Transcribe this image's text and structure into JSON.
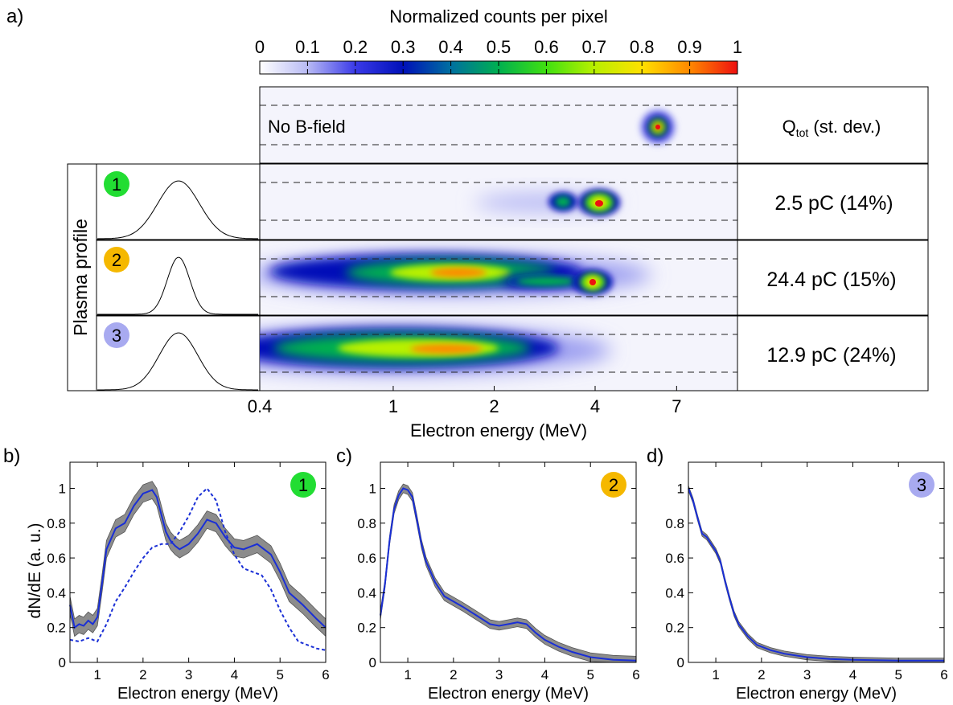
{
  "colorbar": {
    "title": "Normalized counts per pixel",
    "ticks": [
      "0",
      "0.1",
      "0.2",
      "0.3",
      "0.4",
      "0.5",
      "0.6",
      "0.7",
      "0.8",
      "0.9",
      "1"
    ],
    "range": [
      0,
      1
    ]
  },
  "panel_a": {
    "label": "a)",
    "plasma_profile_label": "Plasma profile",
    "no_field_label": "No B-field",
    "charge_header": "Q",
    "charge_header_sub": "tot",
    "charge_header_rest": " (st. dev.)",
    "xlabel": "Electron energy (MeV)",
    "xticks": [
      "0.4",
      "1",
      "2",
      "4",
      "7"
    ],
    "rows": [
      {
        "id": "1",
        "badge_color": "#22dd33",
        "charge": "2.5 pC (14%)"
      },
      {
        "id": "2",
        "badge_color": "#f5b800",
        "charge": "24.4 pC (15%)"
      },
      {
        "id": "3",
        "badge_color": "#a8aaf0",
        "charge": "12.9 pC (24%)"
      }
    ]
  },
  "chart_data": [
    {
      "type": "line",
      "panel": "b)",
      "badge": "1",
      "badge_color": "#22dd33",
      "xlabel": "Electron energy (MeV)",
      "ylabel": "dN/dE (a. u.)",
      "xlim": [
        0.4,
        6
      ],
      "ylim": [
        0,
        1.15
      ],
      "xticks": [
        1,
        2,
        3,
        4,
        5,
        6
      ],
      "yticks": [
        0,
        0.2,
        0.4,
        0.6,
        0.8,
        1
      ],
      "band_halfwidth": 0.05,
      "series": [
        {
          "style": "solid",
          "color": "#1a2fd6",
          "x": [
            0.4,
            0.5,
            0.6,
            0.7,
            0.8,
            0.9,
            1.0,
            1.1,
            1.2,
            1.4,
            1.6,
            1.8,
            2.0,
            2.2,
            2.3,
            2.4,
            2.5,
            2.6,
            2.7,
            2.8,
            3.0,
            3.2,
            3.4,
            3.6,
            3.8,
            4.0,
            4.2,
            4.5,
            4.8,
            5.0,
            5.2,
            5.5,
            5.8,
            6.0
          ],
          "y": [
            0.33,
            0.2,
            0.22,
            0.21,
            0.24,
            0.22,
            0.26,
            0.45,
            0.65,
            0.77,
            0.8,
            0.9,
            0.97,
            0.99,
            0.95,
            0.85,
            0.75,
            0.7,
            0.67,
            0.65,
            0.68,
            0.74,
            0.82,
            0.8,
            0.72,
            0.66,
            0.65,
            0.68,
            0.62,
            0.52,
            0.4,
            0.33,
            0.25,
            0.2
          ]
        },
        {
          "style": "dashed",
          "color": "#1a2fd6",
          "x": [
            0.4,
            0.6,
            0.8,
            1.0,
            1.2,
            1.4,
            1.6,
            1.8,
            2.0,
            2.2,
            2.4,
            2.6,
            2.8,
            3.0,
            3.2,
            3.4,
            3.6,
            3.8,
            4.0,
            4.2,
            4.4,
            4.6,
            4.8,
            5.0,
            5.2,
            5.4,
            5.6,
            5.8,
            6.0
          ],
          "y": [
            0.13,
            0.12,
            0.14,
            0.12,
            0.22,
            0.35,
            0.43,
            0.52,
            0.6,
            0.66,
            0.68,
            0.68,
            0.75,
            0.84,
            0.95,
            1.0,
            0.93,
            0.75,
            0.62,
            0.54,
            0.52,
            0.5,
            0.42,
            0.3,
            0.2,
            0.12,
            0.1,
            0.08,
            0.07
          ]
        }
      ]
    },
    {
      "type": "line",
      "panel": "c)",
      "badge": "2",
      "badge_color": "#f5b800",
      "xlabel": "Electron energy (MeV)",
      "xlim": [
        0.4,
        6
      ],
      "ylim": [
        0,
        1.15
      ],
      "xticks": [
        1,
        2,
        3,
        4,
        5,
        6
      ],
      "yticks": [
        0,
        0.2,
        0.4,
        0.6,
        0.8,
        1
      ],
      "band_halfwidth": 0.025,
      "series": [
        {
          "style": "solid",
          "color": "#1a2fd6",
          "x": [
            0.4,
            0.5,
            0.6,
            0.7,
            0.8,
            0.9,
            1.0,
            1.1,
            1.2,
            1.3,
            1.4,
            1.6,
            1.8,
            2.0,
            2.2,
            2.5,
            2.8,
            3.0,
            3.2,
            3.4,
            3.6,
            3.8,
            4.0,
            4.3,
            4.6,
            5.0,
            5.5,
            6.0
          ],
          "y": [
            0.27,
            0.45,
            0.7,
            0.88,
            0.96,
            1.0,
            0.99,
            0.95,
            0.82,
            0.68,
            0.58,
            0.46,
            0.38,
            0.35,
            0.32,
            0.27,
            0.22,
            0.21,
            0.22,
            0.23,
            0.22,
            0.17,
            0.13,
            0.09,
            0.06,
            0.03,
            0.015,
            0.01
          ]
        }
      ]
    },
    {
      "type": "line",
      "panel": "d)",
      "badge": "3",
      "badge_color": "#a8aaf0",
      "xlabel": "Electron energy (MeV)",
      "xlim": [
        0.4,
        6
      ],
      "ylim": [
        0,
        1.15
      ],
      "xticks": [
        1,
        2,
        3,
        4,
        5,
        6
      ],
      "yticks": [
        0,
        0.2,
        0.4,
        0.6,
        0.8,
        1
      ],
      "band_halfwidth": 0.015,
      "series": [
        {
          "style": "solid",
          "color": "#1a2fd6",
          "x": [
            0.4,
            0.5,
            0.6,
            0.7,
            0.8,
            0.9,
            1.0,
            1.1,
            1.2,
            1.3,
            1.4,
            1.5,
            1.7,
            1.9,
            2.2,
            2.5,
            3.0,
            3.5,
            4.0,
            5.0,
            6.0
          ],
          "y": [
            1.0,
            0.93,
            0.83,
            0.74,
            0.72,
            0.68,
            0.64,
            0.58,
            0.47,
            0.37,
            0.28,
            0.22,
            0.15,
            0.1,
            0.07,
            0.05,
            0.03,
            0.02,
            0.015,
            0.01,
            0.01
          ]
        }
      ]
    }
  ]
}
